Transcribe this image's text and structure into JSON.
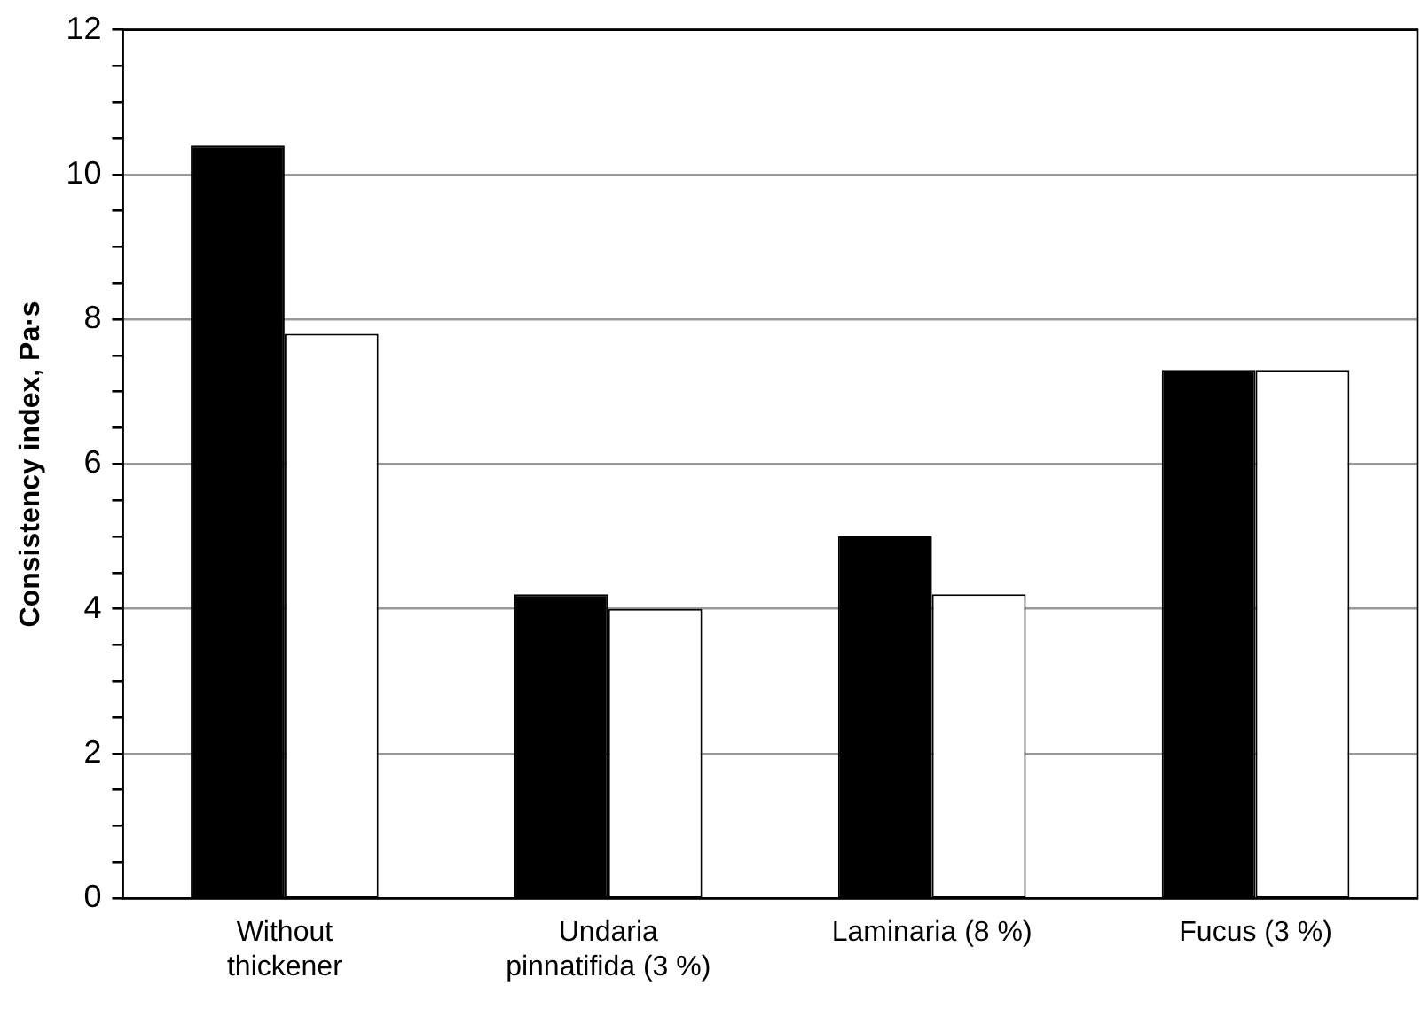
{
  "chart_data": {
    "type": "bar",
    "ylabel": "Consistency index, Pa·s",
    "categories": [
      "Without\nthickener",
      "Undaria\npinnatifida (3 %)",
      "Laminaria (8 %)",
      "Fucus (3 %)"
    ],
    "series": [
      {
        "color": "#000000",
        "values": [
          10.4,
          4.2,
          5.0,
          7.3
        ]
      },
      {
        "color": "#ffffff",
        "values": [
          7.8,
          4.0,
          4.2,
          7.3
        ]
      }
    ],
    "ylim": [
      0,
      12
    ],
    "yticks": [
      0,
      {
        "value": 0.5,
        "label": null
      },
      {
        "value": 1,
        "label": null
      },
      {
        "value": 1.5,
        "label": null
      },
      2,
      {
        "value": 2.5,
        "label": null
      },
      {
        "value": 3,
        "label": null
      },
      {
        "value": 3.5,
        "label": null
      },
      4,
      {
        "value": 4.5,
        "label": null
      },
      {
        "value": 5,
        "label": null
      },
      {
        "value": 5.5,
        "label": null
      },
      6,
      {
        "value": 6.5,
        "label": null
      },
      {
        "value": 7,
        "label": null
      },
      {
        "value": 7.5,
        "label": null
      },
      8,
      {
        "value": 8.5,
        "label": null
      },
      {
        "value": 9,
        "label": null
      },
      {
        "value": 9.5,
        "label": null
      },
      10,
      {
        "value": 10.5,
        "label": null
      },
      {
        "value": 11,
        "label": null
      },
      {
        "value": 11.5,
        "label": null
      },
      12
    ],
    "grid": "y",
    "legend": false
  }
}
